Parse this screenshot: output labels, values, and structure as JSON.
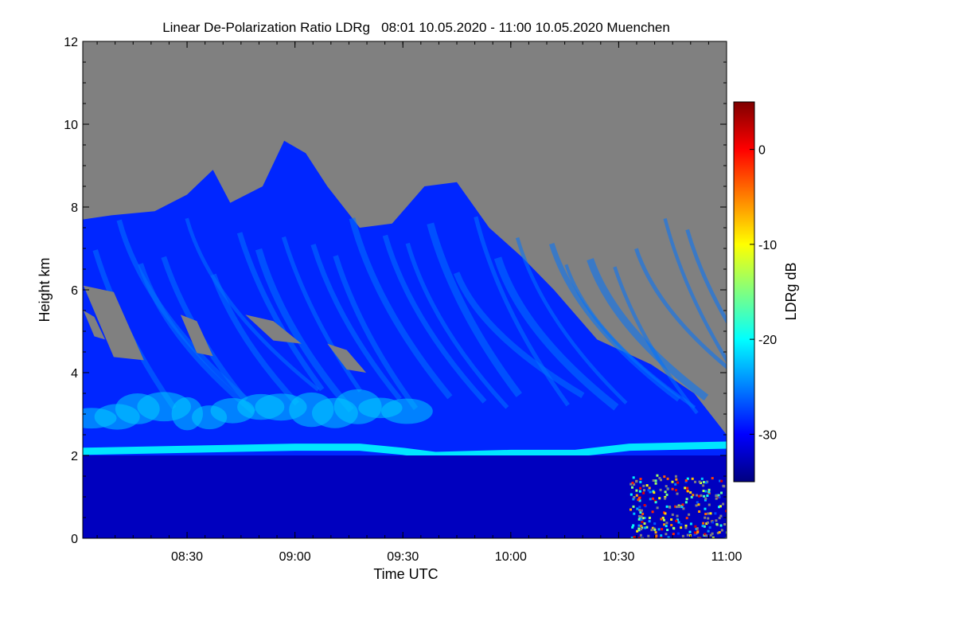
{
  "chart_data": {
    "type": "heatmap",
    "title": "Linear De-Polarization Ratio LDRg   08:01 10.05.2020 - 11:00 10.05.2020 Muenchen",
    "xlabel": "Time UTC",
    "ylabel": "Height km",
    "x_tick_labels": [
      "08:30",
      "09:00",
      "09:30",
      "10:00",
      "10:30",
      "11:00"
    ],
    "x_ticks_hours": [
      8.5,
      9.0,
      9.5,
      10.0,
      10.5,
      11.0
    ],
    "xlim_hours": [
      8.0167,
      11.0
    ],
    "y_tick_labels": [
      "0",
      "2",
      "4",
      "6",
      "8",
      "10",
      "12"
    ],
    "y_ticks": [
      0,
      2,
      4,
      6,
      8,
      10,
      12
    ],
    "ylim": [
      0,
      12
    ],
    "colorbar": {
      "label": "LDRg dB",
      "tick_labels": [
        "0",
        "-10",
        "-20",
        "-30"
      ],
      "ticks": [
        0,
        -10,
        -20,
        -30
      ],
      "range": [
        -35,
        5
      ],
      "colors": [
        "#00007f",
        "#0000ff",
        "#0080ff",
        "#00ffff",
        "#80ff80",
        "#ffff00",
        "#ff8000",
        "#ff0000",
        "#7f0000"
      ]
    },
    "no_data_color": "#808080",
    "grid": false,
    "features": {
      "cloud_top_km": [
        {
          "t": 8.0167,
          "h": 7.7
        },
        {
          "t": 8.15,
          "h": 7.8
        },
        {
          "t": 8.35,
          "h": 7.9
        },
        {
          "t": 8.5,
          "h": 8.3
        },
        {
          "t": 8.62,
          "h": 8.9
        },
        {
          "t": 8.7,
          "h": 8.1
        },
        {
          "t": 8.85,
          "h": 8.5
        },
        {
          "t": 8.95,
          "h": 9.6
        },
        {
          "t": 9.05,
          "h": 9.3
        },
        {
          "t": 9.15,
          "h": 8.5
        },
        {
          "t": 9.3,
          "h": 7.5
        },
        {
          "t": 9.45,
          "h": 7.6
        },
        {
          "t": 9.6,
          "h": 8.5
        },
        {
          "t": 9.75,
          "h": 8.6
        },
        {
          "t": 9.9,
          "h": 7.5
        },
        {
          "t": 10.05,
          "h": 6.8
        },
        {
          "t": 10.2,
          "h": 6.0
        },
        {
          "t": 10.4,
          "h": 4.8
        },
        {
          "t": 10.65,
          "h": 4.2
        },
        {
          "t": 10.85,
          "h": 3.5
        },
        {
          "t": 11.0,
          "h": 2.5
        }
      ],
      "melting_layer_km": [
        {
          "t": 8.0167,
          "h": 2.1
        },
        {
          "t": 8.5,
          "h": 2.15
        },
        {
          "t": 9.0,
          "h": 2.2
        },
        {
          "t": 9.3,
          "h": 2.2
        },
        {
          "t": 9.5,
          "h": 2.1
        },
        {
          "t": 9.65,
          "h": 2.0
        },
        {
          "t": 10.0,
          "h": 2.05
        },
        {
          "t": 10.3,
          "h": 2.05
        },
        {
          "t": 10.55,
          "h": 2.2
        },
        {
          "t": 11.0,
          "h": 2.25
        }
      ]
    }
  }
}
